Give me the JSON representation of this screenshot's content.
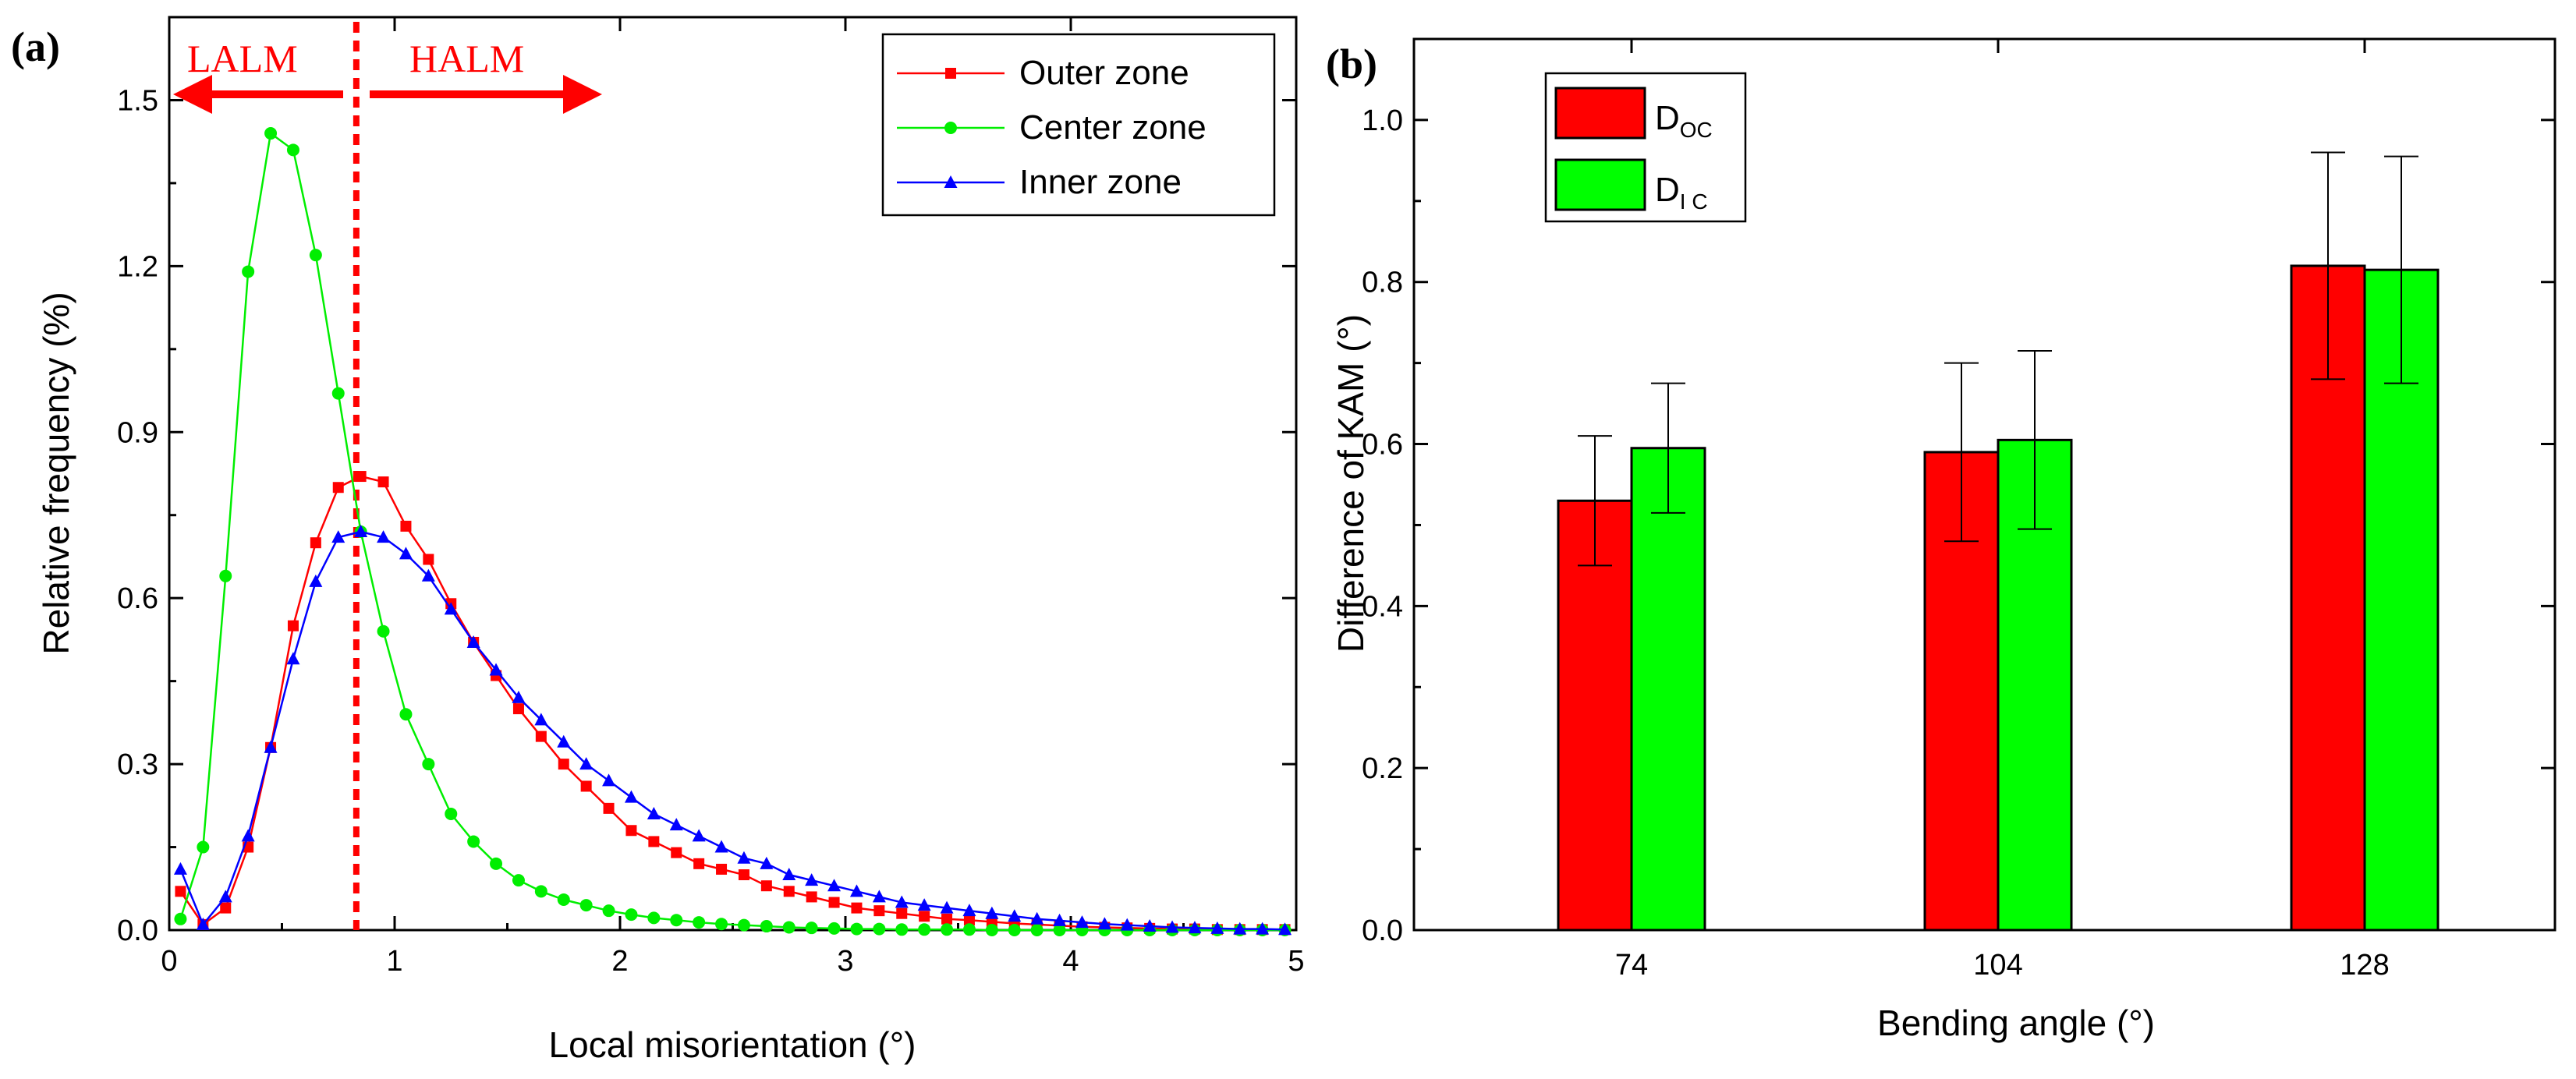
{
  "figure": {
    "panel_a_label": "(a)",
    "panel_b_label": "(b)",
    "lalm_text": "LALM",
    "halm_text": "HALM"
  },
  "chart_data": [
    {
      "type": "line",
      "panel": "(a)",
      "title": "",
      "xlabel": "Local misorientation (°)",
      "ylabel": "Relative frequency (%)",
      "xlim": [
        0,
        5
      ],
      "ylim": [
        0,
        1.65
      ],
      "xticks": [
        "0",
        "1",
        "2",
        "3",
        "4",
        "5"
      ],
      "yticks": [
        "0.0",
        "0.3",
        "0.6",
        "0.9",
        "1.2",
        "1.5"
      ],
      "grid": false,
      "legend": "top-right",
      "divider_x": 0.83,
      "annotations": [
        "LALM",
        "HALM"
      ],
      "x": [
        0.05,
        0.15,
        0.25,
        0.35,
        0.45,
        0.55,
        0.65,
        0.75,
        0.85,
        0.95,
        1.05,
        1.15,
        1.25,
        1.35,
        1.45,
        1.55,
        1.65,
        1.75,
        1.85,
        1.95,
        2.05,
        2.15,
        2.25,
        2.35,
        2.45,
        2.55,
        2.65,
        2.75,
        2.85,
        2.95,
        3.05,
        3.15,
        3.25,
        3.35,
        3.45,
        3.55,
        3.65,
        3.75,
        3.85,
        3.95,
        4.05,
        4.15,
        4.25,
        4.35,
        4.45,
        4.55,
        4.65,
        4.75,
        4.85,
        4.95
      ],
      "series": [
        {
          "name": "Outer zone",
          "color": "#ff0000",
          "marker": "square",
          "values": [
            0.07,
            0.01,
            0.04,
            0.15,
            0.33,
            0.55,
            0.7,
            0.8,
            0.82,
            0.81,
            0.73,
            0.67,
            0.59,
            0.52,
            0.46,
            0.4,
            0.35,
            0.3,
            0.26,
            0.22,
            0.18,
            0.16,
            0.14,
            0.12,
            0.11,
            0.1,
            0.08,
            0.07,
            0.06,
            0.05,
            0.04,
            0.035,
            0.03,
            0.025,
            0.02,
            0.018,
            0.015,
            0.012,
            0.01,
            0.008,
            0.006,
            0.005,
            0.004,
            0.003,
            0.002,
            0.002,
            0.001,
            0.001,
            0.001,
            0.001
          ]
        },
        {
          "name": "Center zone",
          "color": "#00ee00",
          "marker": "circle",
          "values": [
            0.02,
            0.15,
            0.64,
            1.19,
            1.44,
            1.41,
            1.22,
            0.97,
            0.72,
            0.54,
            0.39,
            0.3,
            0.21,
            0.16,
            0.12,
            0.09,
            0.07,
            0.055,
            0.045,
            0.035,
            0.028,
            0.022,
            0.018,
            0.014,
            0.011,
            0.009,
            0.007,
            0.005,
            0.004,
            0.003,
            0.002,
            0.002,
            0.001,
            0.001,
            0.001,
            0.001,
            0.0,
            0.0,
            0.0,
            0.0,
            0.0,
            0.0,
            0.0,
            0.0,
            0.0,
            0.0,
            0.0,
            0.0,
            0.0,
            0.0
          ]
        },
        {
          "name": "Inner zone",
          "color": "#0000ff",
          "marker": "triangle",
          "values": [
            0.11,
            0.01,
            0.06,
            0.17,
            0.33,
            0.49,
            0.63,
            0.71,
            0.72,
            0.71,
            0.68,
            0.64,
            0.58,
            0.52,
            0.47,
            0.42,
            0.38,
            0.34,
            0.3,
            0.27,
            0.24,
            0.21,
            0.19,
            0.17,
            0.15,
            0.13,
            0.12,
            0.1,
            0.09,
            0.08,
            0.07,
            0.06,
            0.05,
            0.045,
            0.04,
            0.035,
            0.03,
            0.025,
            0.02,
            0.017,
            0.014,
            0.011,
            0.009,
            0.007,
            0.005,
            0.004,
            0.003,
            0.002,
            0.002,
            0.001
          ]
        }
      ]
    },
    {
      "type": "bar",
      "panel": "(b)",
      "title": "",
      "xlabel": "Bending angle (°)",
      "ylabel": "Difference of KAM (°)",
      "ylim": [
        0,
        1.1
      ],
      "yticks": [
        "0.0",
        "0.2",
        "0.4",
        "0.6",
        "0.8",
        "1.0"
      ],
      "categories": [
        "74",
        "104",
        "128"
      ],
      "legend": "top-left",
      "series": [
        {
          "name": "D",
          "subscript": "OC",
          "color": "#ff0000",
          "values": [
            0.53,
            0.59,
            0.82
          ],
          "errors": [
            0.08,
            0.11,
            0.14
          ]
        },
        {
          "name": "D",
          "subscript": "I C",
          "color": "#00ff00",
          "values": [
            0.595,
            0.605,
            0.815
          ],
          "errors": [
            0.08,
            0.11,
            0.14
          ]
        }
      ]
    }
  ]
}
